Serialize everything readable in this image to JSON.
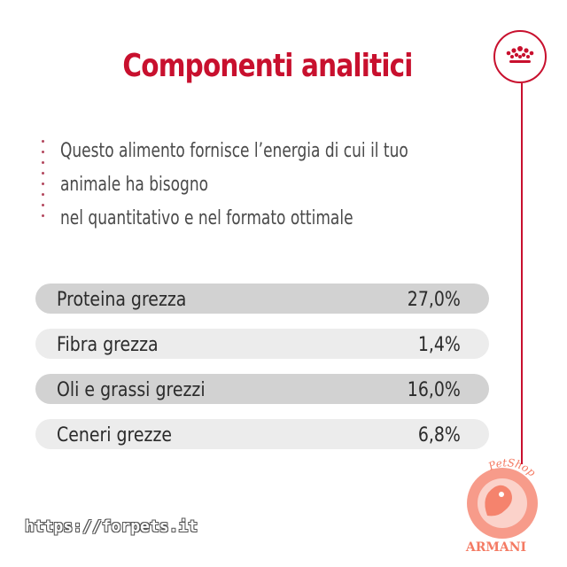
{
  "title": "Componenti analitici",
  "description": [
    "Questo alimento fornisce l’energia di cui il tuo",
    "animale ha bisogno",
    "nel quantitativo e nel formato ottimale"
  ],
  "components": [
    {
      "label": "Proteina grezza",
      "value": "27,0%"
    },
    {
      "label": "Fibra grezza",
      "value": "1,4%"
    },
    {
      "label": "Oli e grassi grezzi",
      "value": "16,0%"
    },
    {
      "label": "Ceneri grezze",
      "value": "6,8%"
    }
  ],
  "watermark": {
    "url": "https://forpets.it",
    "logo_text_top": "PetShop",
    "logo_text_bottom": "ARMANI"
  },
  "icons": {
    "badge": "crown-icon",
    "logo": "petshop-logo-icon"
  },
  "colors": {
    "accent": "#c8102e",
    "row_dark": "#d2d2d2",
    "row_light": "#ececec",
    "logo": "#f47a63"
  }
}
